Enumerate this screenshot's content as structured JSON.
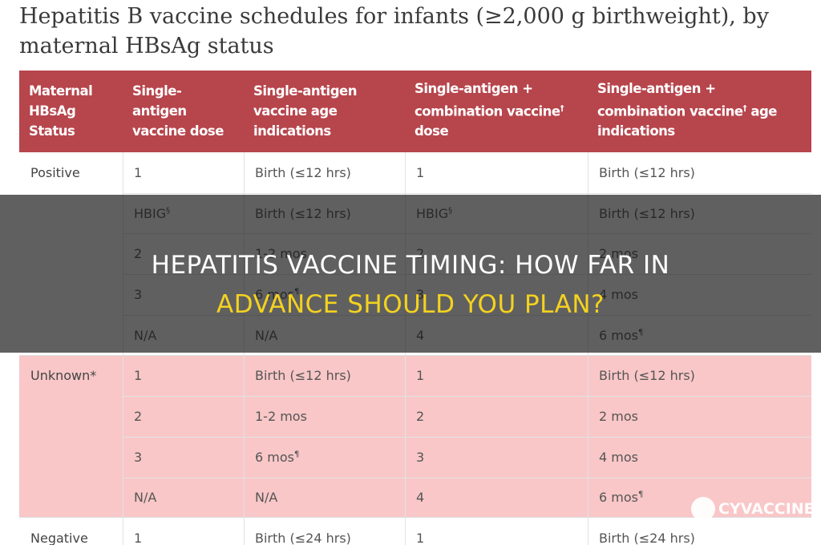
{
  "header": {
    "title": "Hepatitis B vaccine schedules for infants (≥2,000 g birthweight), by maternal HBsAg status"
  },
  "table": {
    "columns": [
      {
        "text": "Maternal HBsAg Status"
      },
      {
        "text": "Single-antigen vaccine dose"
      },
      {
        "text": "Single-antigen vaccine age indications"
      },
      {
        "text": "Single-antigen + combination vaccine",
        "sup": "†",
        "tail": " dose"
      },
      {
        "text": "Single-antigen + combination vaccine",
        "sup": "†",
        "tail": " age indications"
      }
    ],
    "groups": [
      {
        "status": "Positive",
        "rows": [
          [
            {
              "text": "1"
            },
            {
              "text": "Birth (≤12 hrs)"
            },
            {
              "text": "1"
            },
            {
              "text": "Birth (≤12 hrs)"
            }
          ],
          [
            {
              "text": "HBIG",
              "sup": "§"
            },
            {
              "text": "Birth (≤12 hrs)"
            },
            {
              "text": "HBIG",
              "sup": "§"
            },
            {
              "text": "Birth (≤12 hrs)"
            }
          ],
          [
            {
              "text": "2"
            },
            {
              "text": "1-2 mos"
            },
            {
              "text": "2"
            },
            {
              "text": "2 mos"
            }
          ],
          [
            {
              "text": "3"
            },
            {
              "text": "6 mos",
              "sup": "¶"
            },
            {
              "text": "3"
            },
            {
              "text": "4 mos"
            }
          ],
          [
            {
              "text": "N/A"
            },
            {
              "text": "N/A"
            },
            {
              "text": "4"
            },
            {
              "text": "6 mos",
              "sup": "¶"
            }
          ]
        ]
      },
      {
        "status": "Unknown*",
        "rows": [
          [
            {
              "text": "1"
            },
            {
              "text": "Birth (≤12 hrs)"
            },
            {
              "text": "1"
            },
            {
              "text": "Birth (≤12 hrs)"
            }
          ],
          [
            {
              "text": "2"
            },
            {
              "text": "1-2 mos"
            },
            {
              "text": "2"
            },
            {
              "text": "2 mos"
            }
          ],
          [
            {
              "text": "3"
            },
            {
              "text": "6 mos",
              "sup": "¶"
            },
            {
              "text": "3"
            },
            {
              "text": "4 mos"
            }
          ],
          [
            {
              "text": "N/A"
            },
            {
              "text": "N/A"
            },
            {
              "text": "4"
            },
            {
              "text": "6 mos",
              "sup": "¶"
            }
          ]
        ]
      },
      {
        "status": "Negative",
        "rows": [
          [
            {
              "text": "1"
            },
            {
              "text": "Birth (≤24 hrs)"
            },
            {
              "text": "1"
            },
            {
              "text": "Birth (≤24 hrs)"
            }
          ]
        ]
      }
    ]
  },
  "banner": {
    "lines": [
      "HEPATITIS VACCINE TIMING: HOW FAR IN",
      "ADVANCE SHOULD YOU PLAN?"
    ]
  },
  "watermark": {
    "text": "CYVACCINE"
  }
}
